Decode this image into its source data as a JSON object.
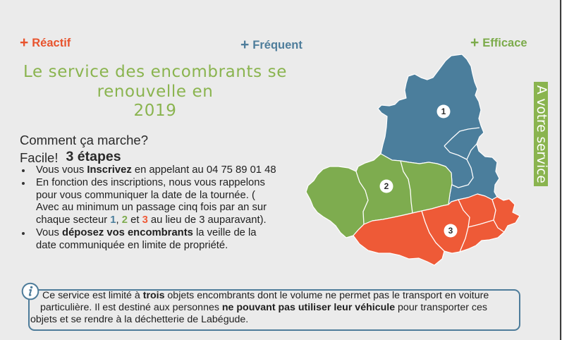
{
  "taglines": [
    {
      "prefix": "+",
      "label": "Réactif",
      "color": "#e8532d"
    },
    {
      "prefix": "+",
      "label": "Fréquent",
      "color": "#4e7d9b"
    },
    {
      "prefix": "+",
      "label": "Efficace",
      "color": "#7cab4b"
    }
  ],
  "title": {
    "lines": [
      "Le service des encombrants se",
      "renouvelle en",
      "2019"
    ],
    "color": "#8ab44f"
  },
  "how_it_works": {
    "question": "Comment ça marche?",
    "answer": "Facile!",
    "steps_label": "3 étapes",
    "steps": [
      {
        "parts": [
          "Vous vous ",
          "Inscrivez",
          " en appelant au 04 75 89 01 48"
        ]
      },
      {
        "lines": [
          "En fonction des inscriptions, nous vous rappelons",
          "pour vous communiquer la date de la tournée. (",
          "Avec au minimum un passage cinq fois par an sur"
        ],
        "last_line": [
          "chaque secteur ",
          "1",
          ", ",
          "2",
          " et ",
          "3",
          " au lieu de 3 auparavant)."
        ]
      },
      {
        "parts": [
          "Vous ",
          "déposez vos encombrants",
          " la veille de la"
        ],
        "continuation": "date communiquée en limite de propriété."
      }
    ]
  },
  "map": {
    "sectors": [
      {
        "number": "1",
        "color": "#4b7e9c"
      },
      {
        "number": "2",
        "color": "#7eac4f"
      },
      {
        "number": "3",
        "color": "#ee5a37"
      }
    ]
  },
  "side_tab": {
    "label": "A votre service",
    "color": "#8ab44f"
  },
  "notice": {
    "icon": "info-icon",
    "border_color": "#4e7c9a",
    "lines": [
      [
        "Ce service est limité à ",
        "trois",
        " objets encombrants dont le volume ne permet pas le transport en voiture"
      ],
      [
        "particulière. Il est destiné aux personnes ",
        "ne pouvant pas utiliser leur véhicule",
        " pour transporter ces"
      ],
      [
        "objets et se rendre à la déchetterie de Labégude."
      ]
    ]
  }
}
